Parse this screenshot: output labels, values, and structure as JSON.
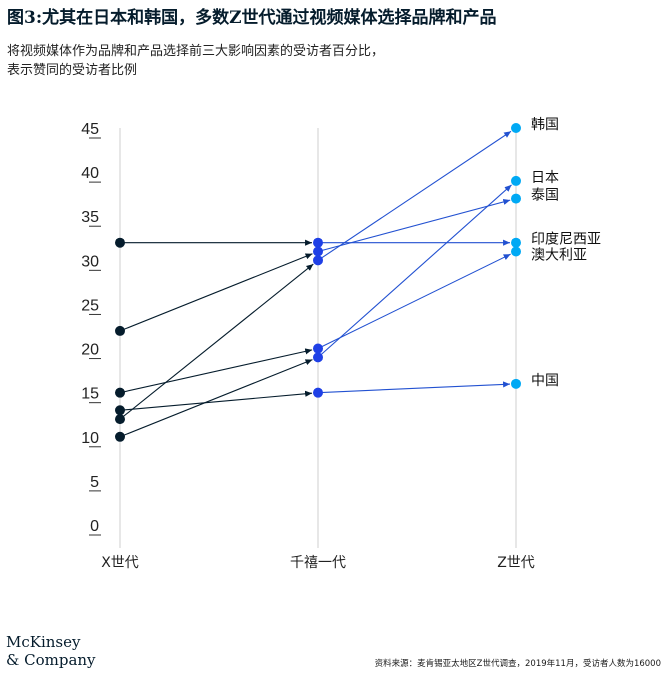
{
  "header": {
    "title": "图3:尤其在日本和韩国，多数Z世代通过视频媒体选择品牌和产品",
    "subtitle_lines": [
      "将视频媒体作为品牌和产品选择前三大影响因素的受访者百分比，",
      "表示赞同的受访者比例"
    ]
  },
  "chart_data": {
    "type": "line",
    "categories": [
      "X世代",
      "千禧一代",
      "Z世代"
    ],
    "ylim": [
      0,
      45
    ],
    "yticks": [
      0,
      5,
      10,
      15,
      20,
      25,
      30,
      35,
      40,
      45
    ],
    "series": [
      {
        "name": "韩国",
        "values": [
          12,
          30,
          45
        ]
      },
      {
        "name": "日本",
        "values": [
          10,
          19,
          39
        ]
      },
      {
        "name": "泰国",
        "values": [
          22,
          31,
          37
        ]
      },
      {
        "name": "印度尼西亚",
        "values": [
          32,
          32,
          32
        ]
      },
      {
        "name": "澳大利亚",
        "values": [
          15,
          20,
          31
        ]
      },
      {
        "name": "中国",
        "values": [
          13,
          15,
          16
        ]
      }
    ],
    "colors": {
      "genx": "#051c2c",
      "millennial": "#1f40e6",
      "genz": "#00a9f4",
      "line_dark": "#051c2c",
      "line_blue": "#2251d1",
      "grid": "#cfcfcf"
    },
    "grid": true
  },
  "footer": {
    "logo_lines": [
      "McKinsey",
      "& Company"
    ],
    "source": "资料来源：麦肯锡亚太地区Z世代调查，2019年11月，受访者人数为16000"
  }
}
